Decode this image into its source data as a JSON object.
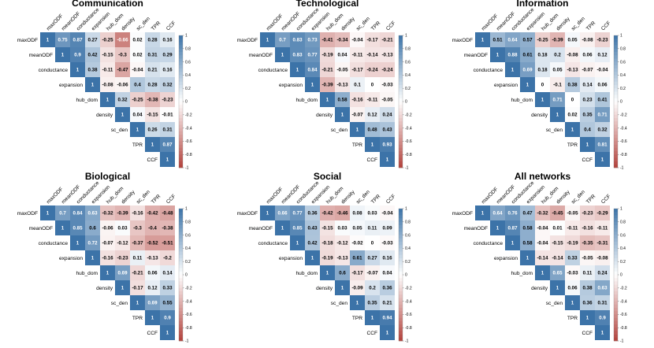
{
  "chart_data": {
    "type": "heatmap",
    "variables": [
      "maxODF",
      "meanODF",
      "conductance",
      "expansion",
      "hub_dom",
      "density",
      "sc_den",
      "TPR",
      "CCF"
    ],
    "colorbar": {
      "range": [
        -1,
        1
      ],
      "ticks": [
        "1",
        "0.8",
        "0.6",
        "0.4",
        "0.2",
        "0",
        "-0.2",
        "-0.4",
        "-0.6",
        "-0.8",
        "-1"
      ],
      "colors": {
        "negative": "#B2413B",
        "mid": "#FFFFFF",
        "positive": "#3C73A8"
      }
    },
    "panels": [
      {
        "title": "Communication",
        "matrix": [
          [
            "1",
            "0.75",
            "0.87",
            "0.27",
            "-0.25",
            "-0.66",
            "0.02",
            "0.28",
            "0.16"
          ],
          [
            "1",
            "0.9",
            "0.42",
            "-0.15",
            "-0.3",
            "0.02",
            "0.31",
            "0.29"
          ],
          [
            "1",
            "0.38",
            "-0.11",
            "-0.47",
            "-0.04",
            "0.21",
            "0.16"
          ],
          [
            "1",
            "-0.08",
            "-0.06",
            "0.4",
            "0.28",
            "0.32"
          ],
          [
            "1",
            "0.32",
            "-0.25",
            "-0.38",
            "-0.23"
          ],
          [
            "1",
            "0.04",
            "-0.15",
            "-0.01"
          ],
          [
            "1",
            "0.26",
            "0.31"
          ],
          [
            "1",
            "0.87"
          ],
          [
            "1"
          ]
        ]
      },
      {
        "title": "Technological",
        "matrix": [
          [
            "1",
            "0.7",
            "0.83",
            "0.73",
            "-0.41",
            "-0.34",
            "-0.04",
            "-0.17",
            "-0.21"
          ],
          [
            "1",
            "0.83",
            "0.77",
            "-0.19",
            "0.04",
            "-0.11",
            "-0.14",
            "-0.13"
          ],
          [
            "1",
            "0.84",
            "-0.21",
            "-0.05",
            "-0.17",
            "-0.24",
            "-0.24"
          ],
          [
            "1",
            "-0.39",
            "-0.13",
            "0.1",
            "0",
            "-0.03"
          ],
          [
            "1",
            "0.58",
            "-0.16",
            "-0.11",
            "-0.05"
          ],
          [
            "1",
            "-0.07",
            "0.12",
            "0.24"
          ],
          [
            "1",
            "0.48",
            "0.43"
          ],
          [
            "1",
            "0.93"
          ],
          [
            "1"
          ]
        ]
      },
      {
        "title": "Information",
        "matrix": [
          [
            "1",
            "0.51",
            "0.64",
            "0.57",
            "-0.25",
            "-0.39",
            "0.05",
            "-0.08",
            "-0.23"
          ],
          [
            "1",
            "0.88",
            "0.61",
            "0.18",
            "0.2",
            "-0.08",
            "0.06",
            "0.12"
          ],
          [
            "1",
            "0.69",
            "0.18",
            "0.05",
            "-0.13",
            "-0.07",
            "-0.04"
          ],
          [
            "1",
            "0",
            "-0.1",
            "0.38",
            "0.14",
            "0.06"
          ],
          [
            "1",
            "0.71",
            "0",
            "0.23",
            "0.41"
          ],
          [
            "1",
            "0.02",
            "0.35",
            "0.71"
          ],
          [
            "1",
            "0.4",
            "0.32"
          ],
          [
            "1",
            "0.81"
          ],
          [
            "1"
          ]
        ]
      },
      {
        "title": "Biological",
        "matrix": [
          [
            "1",
            "0.7",
            "0.84",
            "0.63",
            "-0.32",
            "-0.39",
            "-0.16",
            "-0.42",
            "-0.48"
          ],
          [
            "1",
            "0.85",
            "0.6",
            "-0.06",
            "0.03",
            "-0.3",
            "-0.4",
            "-0.38"
          ],
          [
            "1",
            "0.72",
            "-0.07",
            "-0.12",
            "-0.37",
            "-0.52",
            "-0.51"
          ],
          [
            "1",
            "-0.16",
            "-0.23",
            "0.11",
            "-0.13",
            "-0.2"
          ],
          [
            "1",
            "0.69",
            "-0.21",
            "0.06",
            "0.14"
          ],
          [
            "1",
            "-0.17",
            "0.12",
            "0.33"
          ],
          [
            "1",
            "0.69",
            "0.55"
          ],
          [
            "1",
            "0.9"
          ],
          [
            "1"
          ]
        ]
      },
      {
        "title": "Social",
        "matrix": [
          [
            "1",
            "0.66",
            "0.77",
            "0.36",
            "-0.42",
            "-0.46",
            "0.08",
            "0.03",
            "-0.04"
          ],
          [
            "1",
            "0.85",
            "0.43",
            "-0.15",
            "0.03",
            "0.05",
            "0.11",
            "0.09"
          ],
          [
            "1",
            "0.42",
            "-0.18",
            "-0.12",
            "-0.02",
            "0",
            "-0.03"
          ],
          [
            "1",
            "-0.19",
            "-0.13",
            "0.61",
            "0.27",
            "0.16"
          ],
          [
            "1",
            "0.6",
            "-0.17",
            "-0.07",
            "0.04"
          ],
          [
            "1",
            "-0.09",
            "0.2",
            "0.36"
          ],
          [
            "1",
            "0.35",
            "0.21"
          ],
          [
            "1",
            "0.94"
          ],
          [
            "1"
          ]
        ]
      },
      {
        "title": "All networks",
        "matrix": [
          [
            "1",
            "0.64",
            "0.76",
            "0.47",
            "-0.32",
            "-0.45",
            "-0.05",
            "-0.23",
            "-0.29"
          ],
          [
            "1",
            "0.87",
            "0.58",
            "-0.04",
            "0.01",
            "-0.11",
            "-0.16",
            "-0.11"
          ],
          [
            "1",
            "0.58",
            "-0.04",
            "-0.15",
            "-0.19",
            "-0.35",
            "-0.31"
          ],
          [
            "1",
            "-0.14",
            "-0.14",
            "0.33",
            "-0.05",
            "-0.08"
          ],
          [
            "1",
            "0.65",
            "-0.03",
            "0.11",
            "0.24"
          ],
          [
            "1",
            "0.06",
            "0.38",
            "0.63"
          ],
          [
            "1",
            "0.36",
            "0.31"
          ],
          [
            "1",
            "0.9"
          ],
          [
            "1"
          ]
        ]
      }
    ]
  }
}
